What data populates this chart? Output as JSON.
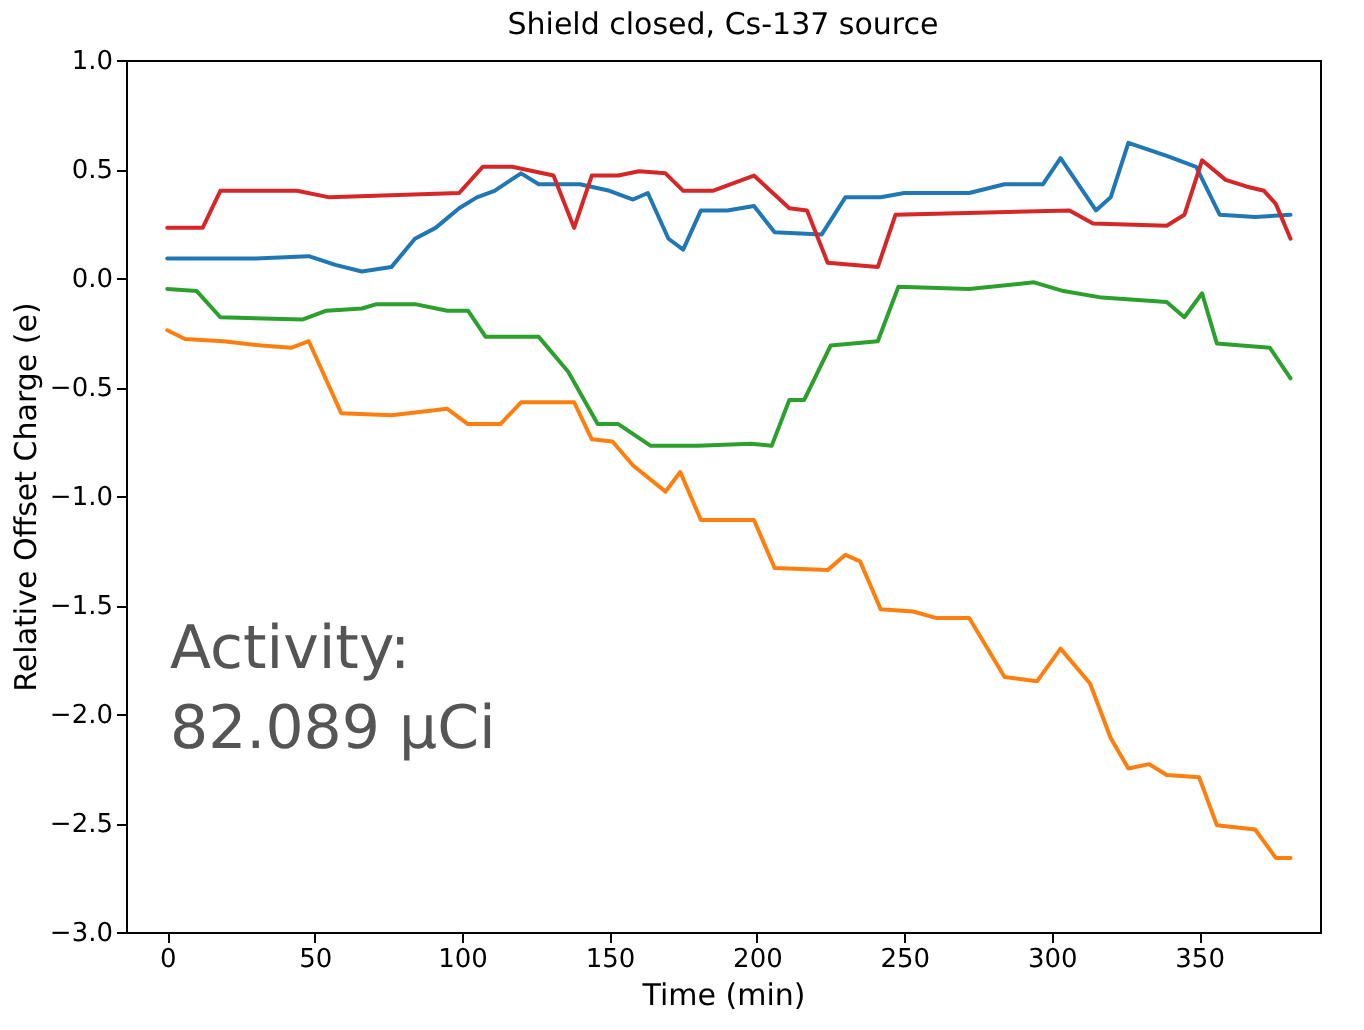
{
  "chart_data": {
    "type": "line",
    "title": "Shield closed, Cs-137 source",
    "xlabel": "Time (min)",
    "ylabel": "Relative Offset Charge (e)",
    "annotations": [
      "Activity:\n82.089 µCi"
    ],
    "xlim": [
      -14,
      391
    ],
    "ylim": [
      -3.0,
      1.0
    ],
    "xticks": [
      0,
      50,
      100,
      150,
      200,
      250,
      300,
      350
    ],
    "yticks": [
      {
        "value": -3.0,
        "label": "−3.0"
      },
      {
        "value": -2.5,
        "label": "−2.5"
      },
      {
        "value": -2.0,
        "label": "−2.0"
      },
      {
        "value": -1.5,
        "label": "−1.5"
      },
      {
        "value": -1.0,
        "label": "−1.0"
      },
      {
        "value": -0.5,
        "label": "−0.5"
      },
      {
        "value": 0.0,
        "label": "0.0"
      },
      {
        "value": 0.5,
        "label": "0.5"
      },
      {
        "value": 1.0,
        "label": "1.0"
      }
    ],
    "grid": false,
    "marker": "none",
    "line_style": "solid",
    "series": [
      {
        "color": "#1f77b4",
        "x": [
          0,
          30,
          48,
          57,
          66,
          76,
          84,
          91,
          99,
          105,
          111,
          120,
          126,
          140,
          150,
          158,
          163,
          170,
          175,
          181,
          190,
          199,
          206,
          222,
          230,
          242,
          250,
          272,
          284,
          297,
          303,
          315,
          320,
          326,
          339,
          349,
          357,
          369,
          381
        ],
        "values": [
          0.09,
          0.09,
          0.1,
          0.06,
          0.03,
          0.05,
          0.18,
          0.23,
          0.32,
          0.37,
          0.4,
          0.48,
          0.43,
          0.43,
          0.4,
          0.36,
          0.39,
          0.18,
          0.13,
          0.31,
          0.31,
          0.33,
          0.21,
          0.2,
          0.37,
          0.37,
          0.39,
          0.39,
          0.43,
          0.43,
          0.55,
          0.31,
          0.37,
          0.62,
          0.56,
          0.51,
          0.29,
          0.28,
          0.29
        ]
      },
      {
        "color": "#ff7f0e",
        "x": [
          0,
          6,
          19,
          32,
          42,
          48,
          59,
          76,
          95,
          102,
          113,
          120,
          138,
          144,
          151,
          158,
          169,
          174,
          181,
          199,
          206,
          224,
          230,
          235,
          242,
          253,
          261,
          272,
          284,
          295,
          303,
          313,
          320,
          326,
          333,
          339,
          350,
          356,
          369,
          376,
          381
        ],
        "values": [
          -0.24,
          -0.28,
          -0.29,
          -0.31,
          -0.32,
          -0.29,
          -0.62,
          -0.63,
          -0.6,
          -0.67,
          -0.67,
          -0.57,
          -0.57,
          -0.74,
          -0.75,
          -0.86,
          -0.98,
          -0.89,
          -1.11,
          -1.11,
          -1.33,
          -1.34,
          -1.27,
          -1.3,
          -1.52,
          -1.53,
          -1.56,
          -1.56,
          -1.83,
          -1.85,
          -1.7,
          -1.86,
          -2.11,
          -2.25,
          -2.23,
          -2.28,
          -2.29,
          -2.51,
          -2.53,
          -2.66,
          -2.66
        ]
      },
      {
        "color": "#2ca02c",
        "x": [
          0,
          10,
          18,
          46,
          54,
          66,
          71,
          84,
          95,
          102,
          108,
          126,
          136,
          146,
          153,
          164,
          180,
          198,
          205,
          211,
          216,
          225,
          241,
          248,
          272,
          294,
          304,
          317,
          339,
          345,
          351,
          356,
          374,
          381
        ],
        "values": [
          -0.05,
          -0.06,
          -0.18,
          -0.19,
          -0.15,
          -0.14,
          -0.12,
          -0.12,
          -0.15,
          -0.15,
          -0.27,
          -0.27,
          -0.43,
          -0.67,
          -0.67,
          -0.77,
          -0.77,
          -0.76,
          -0.77,
          -0.56,
          -0.56,
          -0.31,
          -0.29,
          -0.04,
          -0.05,
          -0.02,
          -0.06,
          -0.09,
          -0.11,
          -0.18,
          -0.07,
          -0.3,
          -0.32,
          -0.46
        ]
      },
      {
        "color": "#d62728",
        "x": [
          0,
          12,
          18,
          44,
          55,
          99,
          107,
          117,
          131,
          138,
          144,
          153,
          160,
          169,
          175,
          185,
          199,
          211,
          217,
          224,
          241,
          247,
          306,
          314,
          339,
          345,
          351,
          359,
          366,
          372,
          376,
          381
        ],
        "values": [
          0.23,
          0.23,
          0.4,
          0.4,
          0.37,
          0.39,
          0.51,
          0.51,
          0.47,
          0.23,
          0.47,
          0.47,
          0.49,
          0.48,
          0.4,
          0.4,
          0.47,
          0.32,
          0.31,
          0.07,
          0.05,
          0.29,
          0.31,
          0.25,
          0.24,
          0.29,
          0.54,
          0.45,
          0.42,
          0.4,
          0.34,
          0.18
        ]
      }
    ]
  }
}
